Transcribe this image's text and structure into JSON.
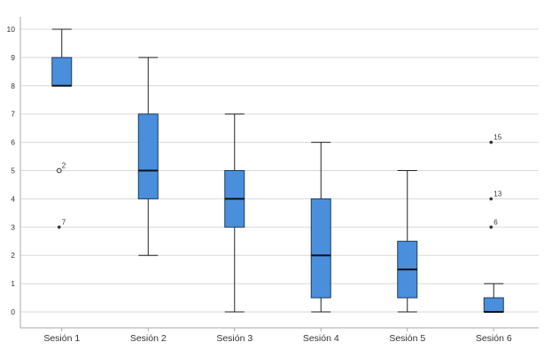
{
  "chart_data": {
    "type": "boxplot",
    "categories": [
      "Sesión 1",
      "Sesión 2",
      "Sesión 3",
      "Sesión 4",
      "Sesión 5",
      "Sesión 6"
    ],
    "y_ticks": [
      0,
      1,
      2,
      3,
      4,
      5,
      6,
      7,
      8,
      9,
      10
    ],
    "ylim": [
      -0.4,
      10.6
    ],
    "grid": true,
    "box_color": "#4a8fdc",
    "box_edge_color": "#1f3a5a",
    "boxes": [
      {
        "category": "Sesión 1",
        "whisker_low": 8,
        "q1": 8,
        "median": 8,
        "q3": 9,
        "whisker_high": 10,
        "outliers": [
          {
            "value": 5,
            "label": "2",
            "marker": "circle"
          },
          {
            "value": 3,
            "label": "7",
            "marker": "dot"
          }
        ]
      },
      {
        "category": "Sesión 2",
        "whisker_low": 2,
        "q1": 4,
        "median": 5,
        "q3": 7,
        "whisker_high": 9,
        "outliers": []
      },
      {
        "category": "Sesión 3",
        "whisker_low": 0,
        "q1": 3,
        "median": 4,
        "q3": 5,
        "whisker_high": 7,
        "outliers": []
      },
      {
        "category": "Sesión 4",
        "whisker_low": 0,
        "q1": 0.5,
        "median": 2,
        "q3": 4,
        "whisker_high": 6,
        "outliers": []
      },
      {
        "category": "Sesión 5",
        "whisker_low": 0,
        "q1": 0.5,
        "median": 1.5,
        "q3": 2.5,
        "whisker_high": 5,
        "outliers": []
      },
      {
        "category": "Sesión 6",
        "whisker_low": 0,
        "q1": 0,
        "median": 0,
        "q3": 0.5,
        "whisker_high": 1,
        "outliers": [
          {
            "value": 6,
            "label": "15",
            "marker": "dot"
          },
          {
            "value": 4,
            "label": "13",
            "marker": "dot"
          },
          {
            "value": 3,
            "label": "6",
            "marker": "dot"
          }
        ]
      }
    ]
  }
}
